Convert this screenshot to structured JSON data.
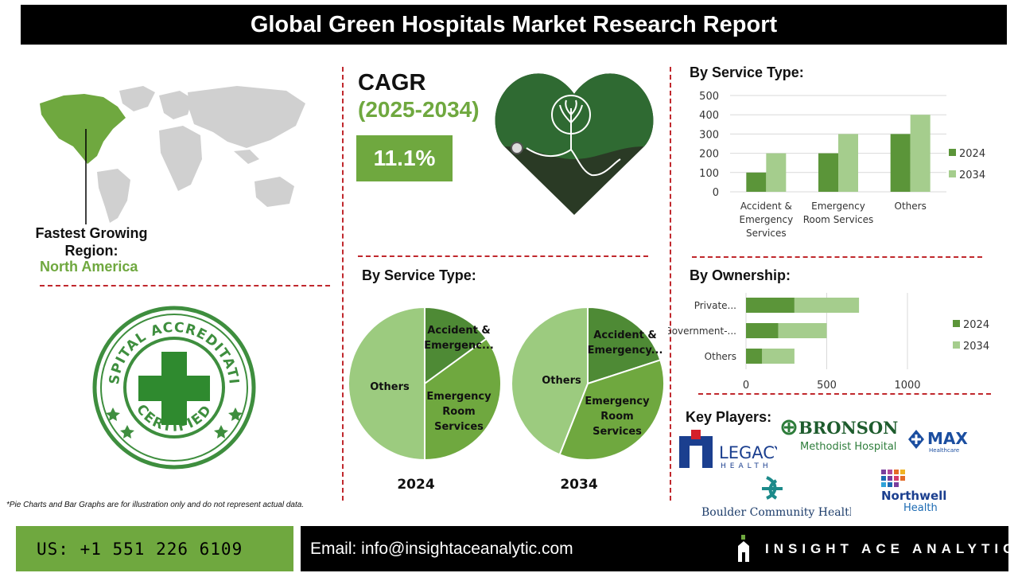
{
  "header": {
    "title": "Global Green Hospitals Market Research Report"
  },
  "region": {
    "label": "Fastest Growing Region:",
    "value": "North America"
  },
  "cagr": {
    "title": "CAGR",
    "years": "(2025-2034)",
    "value": "11.1%"
  },
  "stamp": {
    "top_text": "HOSPITAL ACCREDITATION",
    "bottom_text": "CERTIFIED"
  },
  "sections": {
    "bar_service_title": "By Service Type:",
    "pie_service_title": "By Service Type:",
    "ownership_title": "By Ownership:"
  },
  "key_players": {
    "title": "Key Players:",
    "legacy_line1": "LEGACY",
    "legacy_line2": "HEALTH",
    "bronson_line1": "BRONSON",
    "bronson_line2": "Methodist Hospital",
    "max_line1": "MAX",
    "max_line2": "Healthcare",
    "boulder": "Boulder Community Health",
    "northwell_line1": "Northwell",
    "northwell_line2": "Health"
  },
  "footnote": "*Pie Charts and Bar Graphs are for illustration only and do not represent actual data.",
  "footer": {
    "phone": "US: +1 551 226 6109",
    "email": "Email: info@insightaceanalytic.com",
    "brand": "INSIGHT ACE ANALYTIC"
  },
  "colors": {
    "dark_green": "#5b9539",
    "light_green": "#a5cd8d",
    "accent_green": "#6fa83f",
    "red_dash": "#c0282d"
  },
  "chart_data": [
    {
      "type": "bar",
      "title": "By Service Type:",
      "categories": [
        [
          "Accident &",
          "Emergency",
          "Services"
        ],
        [
          "Emergency",
          "Room Services"
        ],
        [
          "Others"
        ]
      ],
      "series": [
        {
          "name": "2024",
          "values": [
            100,
            200,
            300
          ]
        },
        {
          "name": "2034",
          "values": [
            200,
            300,
            400
          ]
        }
      ],
      "ylim": [
        0,
        500
      ],
      "yticks": [
        "0",
        "100",
        "200",
        "300",
        "400",
        "500"
      ],
      "grid": true,
      "legend": "right"
    },
    {
      "type": "pie",
      "title": "By Service Type:",
      "label": "2024",
      "slices": [
        {
          "name": "Accident & Emergenc...",
          "value": 15
        },
        {
          "name": "Emergency Room Services",
          "value": 35
        },
        {
          "name": "Others",
          "value": 50
        }
      ]
    },
    {
      "type": "pie",
      "title": "By Service Type:",
      "label": "2034",
      "slices": [
        {
          "name": "Accident & Emergency...",
          "value": 20
        },
        {
          "name": "Emergency Room Services",
          "value": 36
        },
        {
          "name": "Others",
          "value": 44
        }
      ]
    },
    {
      "type": "bar",
      "orientation": "horizontal",
      "stacked": true,
      "title": "By Ownership:",
      "categories": [
        "Private...",
        "Government-...",
        "Others"
      ],
      "series": [
        {
          "name": "2024",
          "values": [
            300,
            200,
            100
          ]
        },
        {
          "name": "2034",
          "values": [
            400,
            300,
            200
          ]
        }
      ],
      "xlim": [
        0,
        1200
      ],
      "xticks": [
        "0",
        "500",
        "1000"
      ],
      "grid": true,
      "legend": "right"
    }
  ]
}
